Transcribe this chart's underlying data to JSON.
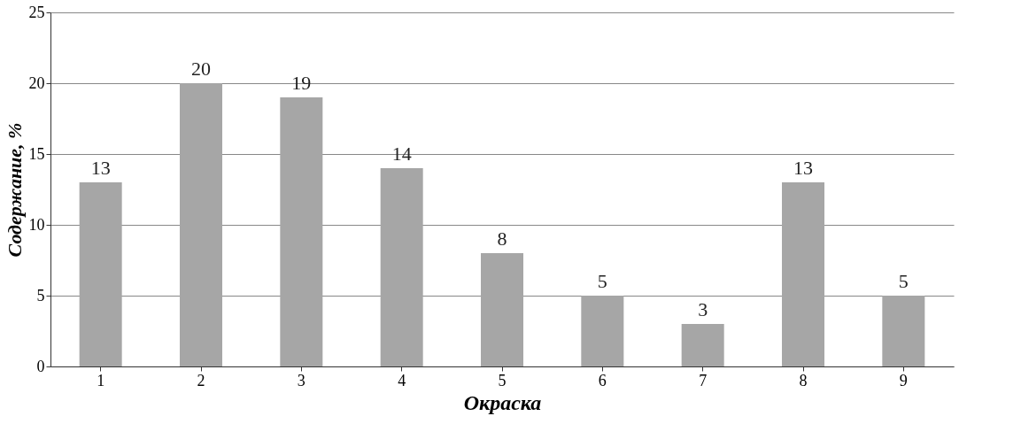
{
  "chart_data": {
    "type": "bar",
    "xlabel": "Окраска",
    "ylabel": "Содержание, %",
    "categories": [
      "1",
      "2",
      "3",
      "4",
      "5",
      "6",
      "7",
      "8",
      "9"
    ],
    "values": [
      13,
      20,
      19,
      14,
      8,
      5,
      3,
      13,
      5
    ],
    "color": "#a6a6a6",
    "ylim": [
      0,
      25
    ],
    "yticks": [
      0,
      5,
      10,
      15,
      20,
      25
    ],
    "grid": "y",
    "data_labels": true
  }
}
